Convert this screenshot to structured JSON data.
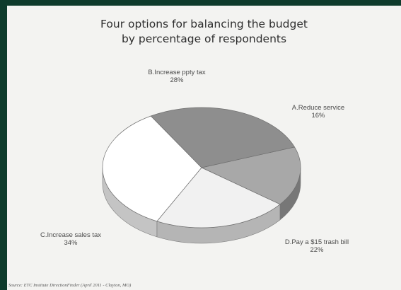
{
  "slide": {
    "title_line1": "Four options for balancing the budget",
    "title_line2": "by percentage of respondents",
    "source": "Source:  ETC Institute DirectionFinder (April 2011 - Clayton, MO)"
  },
  "chart_data": {
    "type": "pie",
    "style": "3d",
    "categories": [
      "A.Reduce service",
      "D.Pay a $15 trash bill",
      "C.Increase sales tax",
      "B.Increase ppty tax"
    ],
    "values": [
      16,
      22,
      34,
      28
    ],
    "value_labels": [
      "16%",
      "22%",
      "34%",
      "28%"
    ],
    "colors": {
      "top": [
        "#a8a8a8",
        "#f1f1f1",
        "#ffffff",
        "#8e8e8e"
      ],
      "side": [
        "#777777",
        "#b5b5b5",
        "#c4c4c4",
        "#666666"
      ]
    },
    "title": "Four options for balancing the budget by percentage of respondents",
    "legend": "none"
  }
}
